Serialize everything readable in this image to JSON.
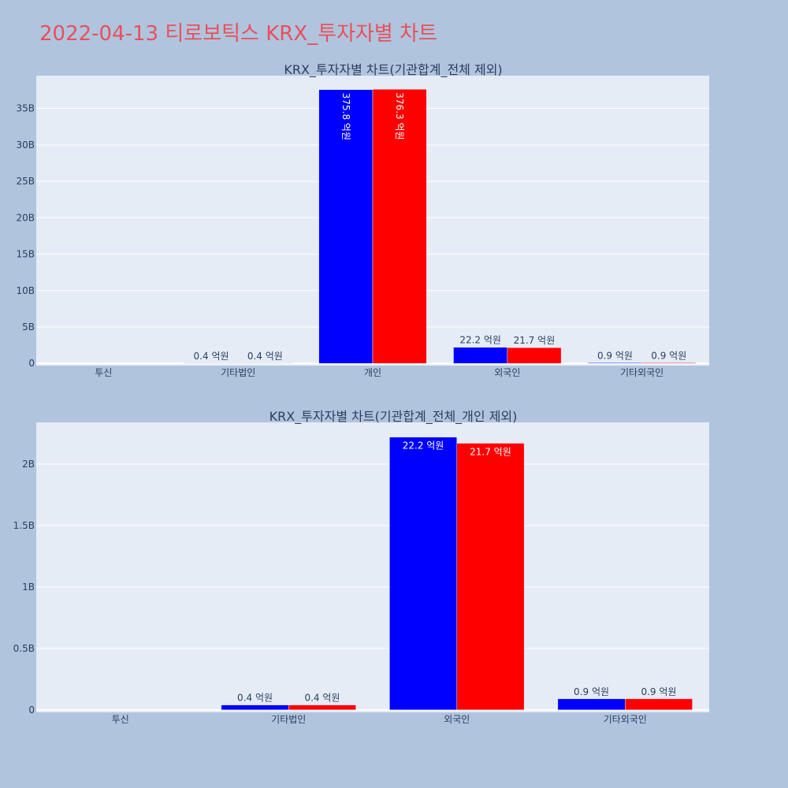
{
  "page": {
    "title": "2022-04-13 티로보틱스 KRX_투자자별 차트"
  },
  "colors": {
    "page_background": "#b0c4de",
    "plot_background": "#e5ecf6",
    "title_color": "#e8505b",
    "series_1": "#0000ff",
    "series_2": "#ff0000"
  },
  "chart_data": [
    {
      "type": "bar",
      "title": "KRX_투자자별 차트(기관합계_전체 제외)",
      "categories": [
        "투신",
        "기타법인",
        "개인",
        "외국인",
        "기타외국인"
      ],
      "series": [
        {
          "values": [
            0,
            40000000,
            37580000000,
            2220000000,
            90000000
          ],
          "labels": [
            "",
            "0.4 억원",
            "375.8 억원",
            "22.2 억원",
            "0.9 억원"
          ],
          "color": "#0000ff"
        },
        {
          "values": [
            0,
            40000000,
            37630000000,
            2170000000,
            90000000
          ],
          "labels": [
            "",
            "0.4 억원",
            "376.3 억원",
            "21.7 억원",
            "0.9 억원"
          ],
          "color": "#ff0000"
        }
      ],
      "ylim": [
        -300000000,
        39500000000
      ],
      "yticks": [
        {
          "value": 0,
          "label": "0"
        },
        {
          "value": 5000000000,
          "label": "5B"
        },
        {
          "value": 10000000000,
          "label": "10B"
        },
        {
          "value": 15000000000,
          "label": "15B"
        },
        {
          "value": 20000000000,
          "label": "20B"
        },
        {
          "value": 25000000000,
          "label": "25B"
        },
        {
          "value": 30000000000,
          "label": "30B"
        },
        {
          "value": 35000000000,
          "label": "35B"
        }
      ],
      "grid": true,
      "xlabel": "",
      "ylabel": ""
    },
    {
      "type": "bar",
      "title": "KRX_투자자별 차트(기관합계_전체_개인 제외)",
      "categories": [
        "투신",
        "기타법인",
        "외국인",
        "기타외국인"
      ],
      "series": [
        {
          "values": [
            0,
            40000000,
            2220000000,
            90000000
          ],
          "labels": [
            "",
            "0.4 억원",
            "22.2 억원",
            "0.9 억원"
          ],
          "color": "#0000ff"
        },
        {
          "values": [
            0,
            40000000,
            2170000000,
            90000000
          ],
          "labels": [
            "",
            "0.4 억원",
            "21.7 억원",
            "0.9 억원"
          ],
          "color": "#ff0000"
        }
      ],
      "ylim": [
        -20000000,
        2340000000
      ],
      "yticks": [
        {
          "value": 0,
          "label": "0"
        },
        {
          "value": 500000000,
          "label": "0.5B"
        },
        {
          "value": 1000000000,
          "label": "1B"
        },
        {
          "value": 1500000000,
          "label": "1.5B"
        },
        {
          "value": 2000000000,
          "label": "2B"
        }
      ],
      "grid": true,
      "xlabel": "",
      "ylabel": ""
    }
  ]
}
